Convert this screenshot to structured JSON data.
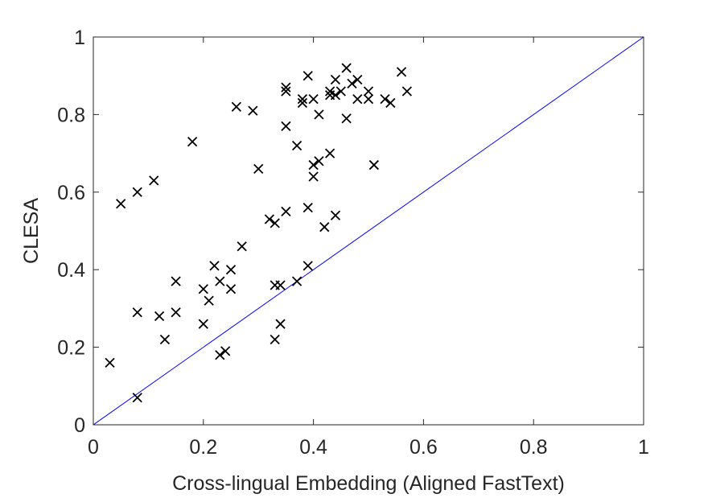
{
  "chart_data": {
    "type": "scatter",
    "xlabel": "Cross-lingual Embedding (Aligned FastText)",
    "ylabel": "CLESA",
    "xlim": [
      0,
      1
    ],
    "ylim": [
      0,
      1
    ],
    "x_ticks": [
      "0",
      "0.2",
      "0.4",
      "0.6",
      "0.8",
      "1"
    ],
    "y_ticks": [
      "0",
      "0.2",
      "0.4",
      "0.6",
      "0.8",
      "1"
    ],
    "grid": false,
    "marker": "x",
    "marker_color": "#000000",
    "reference_line": {
      "from": [
        0,
        0
      ],
      "to": [
        1,
        1
      ],
      "color": "#0000ff"
    },
    "points": [
      [
        0.03,
        0.16
      ],
      [
        0.05,
        0.57
      ],
      [
        0.08,
        0.6
      ],
      [
        0.08,
        0.29
      ],
      [
        0.08,
        0.07
      ],
      [
        0.11,
        0.63
      ],
      [
        0.12,
        0.28
      ],
      [
        0.13,
        0.22
      ],
      [
        0.15,
        0.37
      ],
      [
        0.15,
        0.29
      ],
      [
        0.18,
        0.73
      ],
      [
        0.2,
        0.35
      ],
      [
        0.2,
        0.26
      ],
      [
        0.21,
        0.32
      ],
      [
        0.22,
        0.41
      ],
      [
        0.23,
        0.37
      ],
      [
        0.23,
        0.18
      ],
      [
        0.24,
        0.19
      ],
      [
        0.25,
        0.4
      ],
      [
        0.25,
        0.35
      ],
      [
        0.26,
        0.82
      ],
      [
        0.27,
        0.46
      ],
      [
        0.29,
        0.81
      ],
      [
        0.3,
        0.66
      ],
      [
        0.32,
        0.53
      ],
      [
        0.33,
        0.52
      ],
      [
        0.33,
        0.36
      ],
      [
        0.33,
        0.22
      ],
      [
        0.34,
        0.36
      ],
      [
        0.34,
        0.26
      ],
      [
        0.35,
        0.87
      ],
      [
        0.35,
        0.86
      ],
      [
        0.35,
        0.77
      ],
      [
        0.35,
        0.55
      ],
      [
        0.37,
        0.72
      ],
      [
        0.37,
        0.37
      ],
      [
        0.38,
        0.84
      ],
      [
        0.38,
        0.83
      ],
      [
        0.39,
        0.9
      ],
      [
        0.39,
        0.56
      ],
      [
        0.39,
        0.41
      ],
      [
        0.4,
        0.84
      ],
      [
        0.4,
        0.67
      ],
      [
        0.4,
        0.64
      ],
      [
        0.41,
        0.8
      ],
      [
        0.41,
        0.68
      ],
      [
        0.42,
        0.51
      ],
      [
        0.43,
        0.86
      ],
      [
        0.43,
        0.85
      ],
      [
        0.43,
        0.7
      ],
      [
        0.44,
        0.89
      ],
      [
        0.44,
        0.85
      ],
      [
        0.44,
        0.54
      ],
      [
        0.45,
        0.86
      ],
      [
        0.46,
        0.92
      ],
      [
        0.46,
        0.79
      ],
      [
        0.47,
        0.88
      ],
      [
        0.48,
        0.89
      ],
      [
        0.48,
        0.84
      ],
      [
        0.5,
        0.86
      ],
      [
        0.5,
        0.84
      ],
      [
        0.51,
        0.67
      ],
      [
        0.53,
        0.84
      ],
      [
        0.54,
        0.83
      ],
      [
        0.56,
        0.91
      ],
      [
        0.57,
        0.86
      ]
    ]
  }
}
